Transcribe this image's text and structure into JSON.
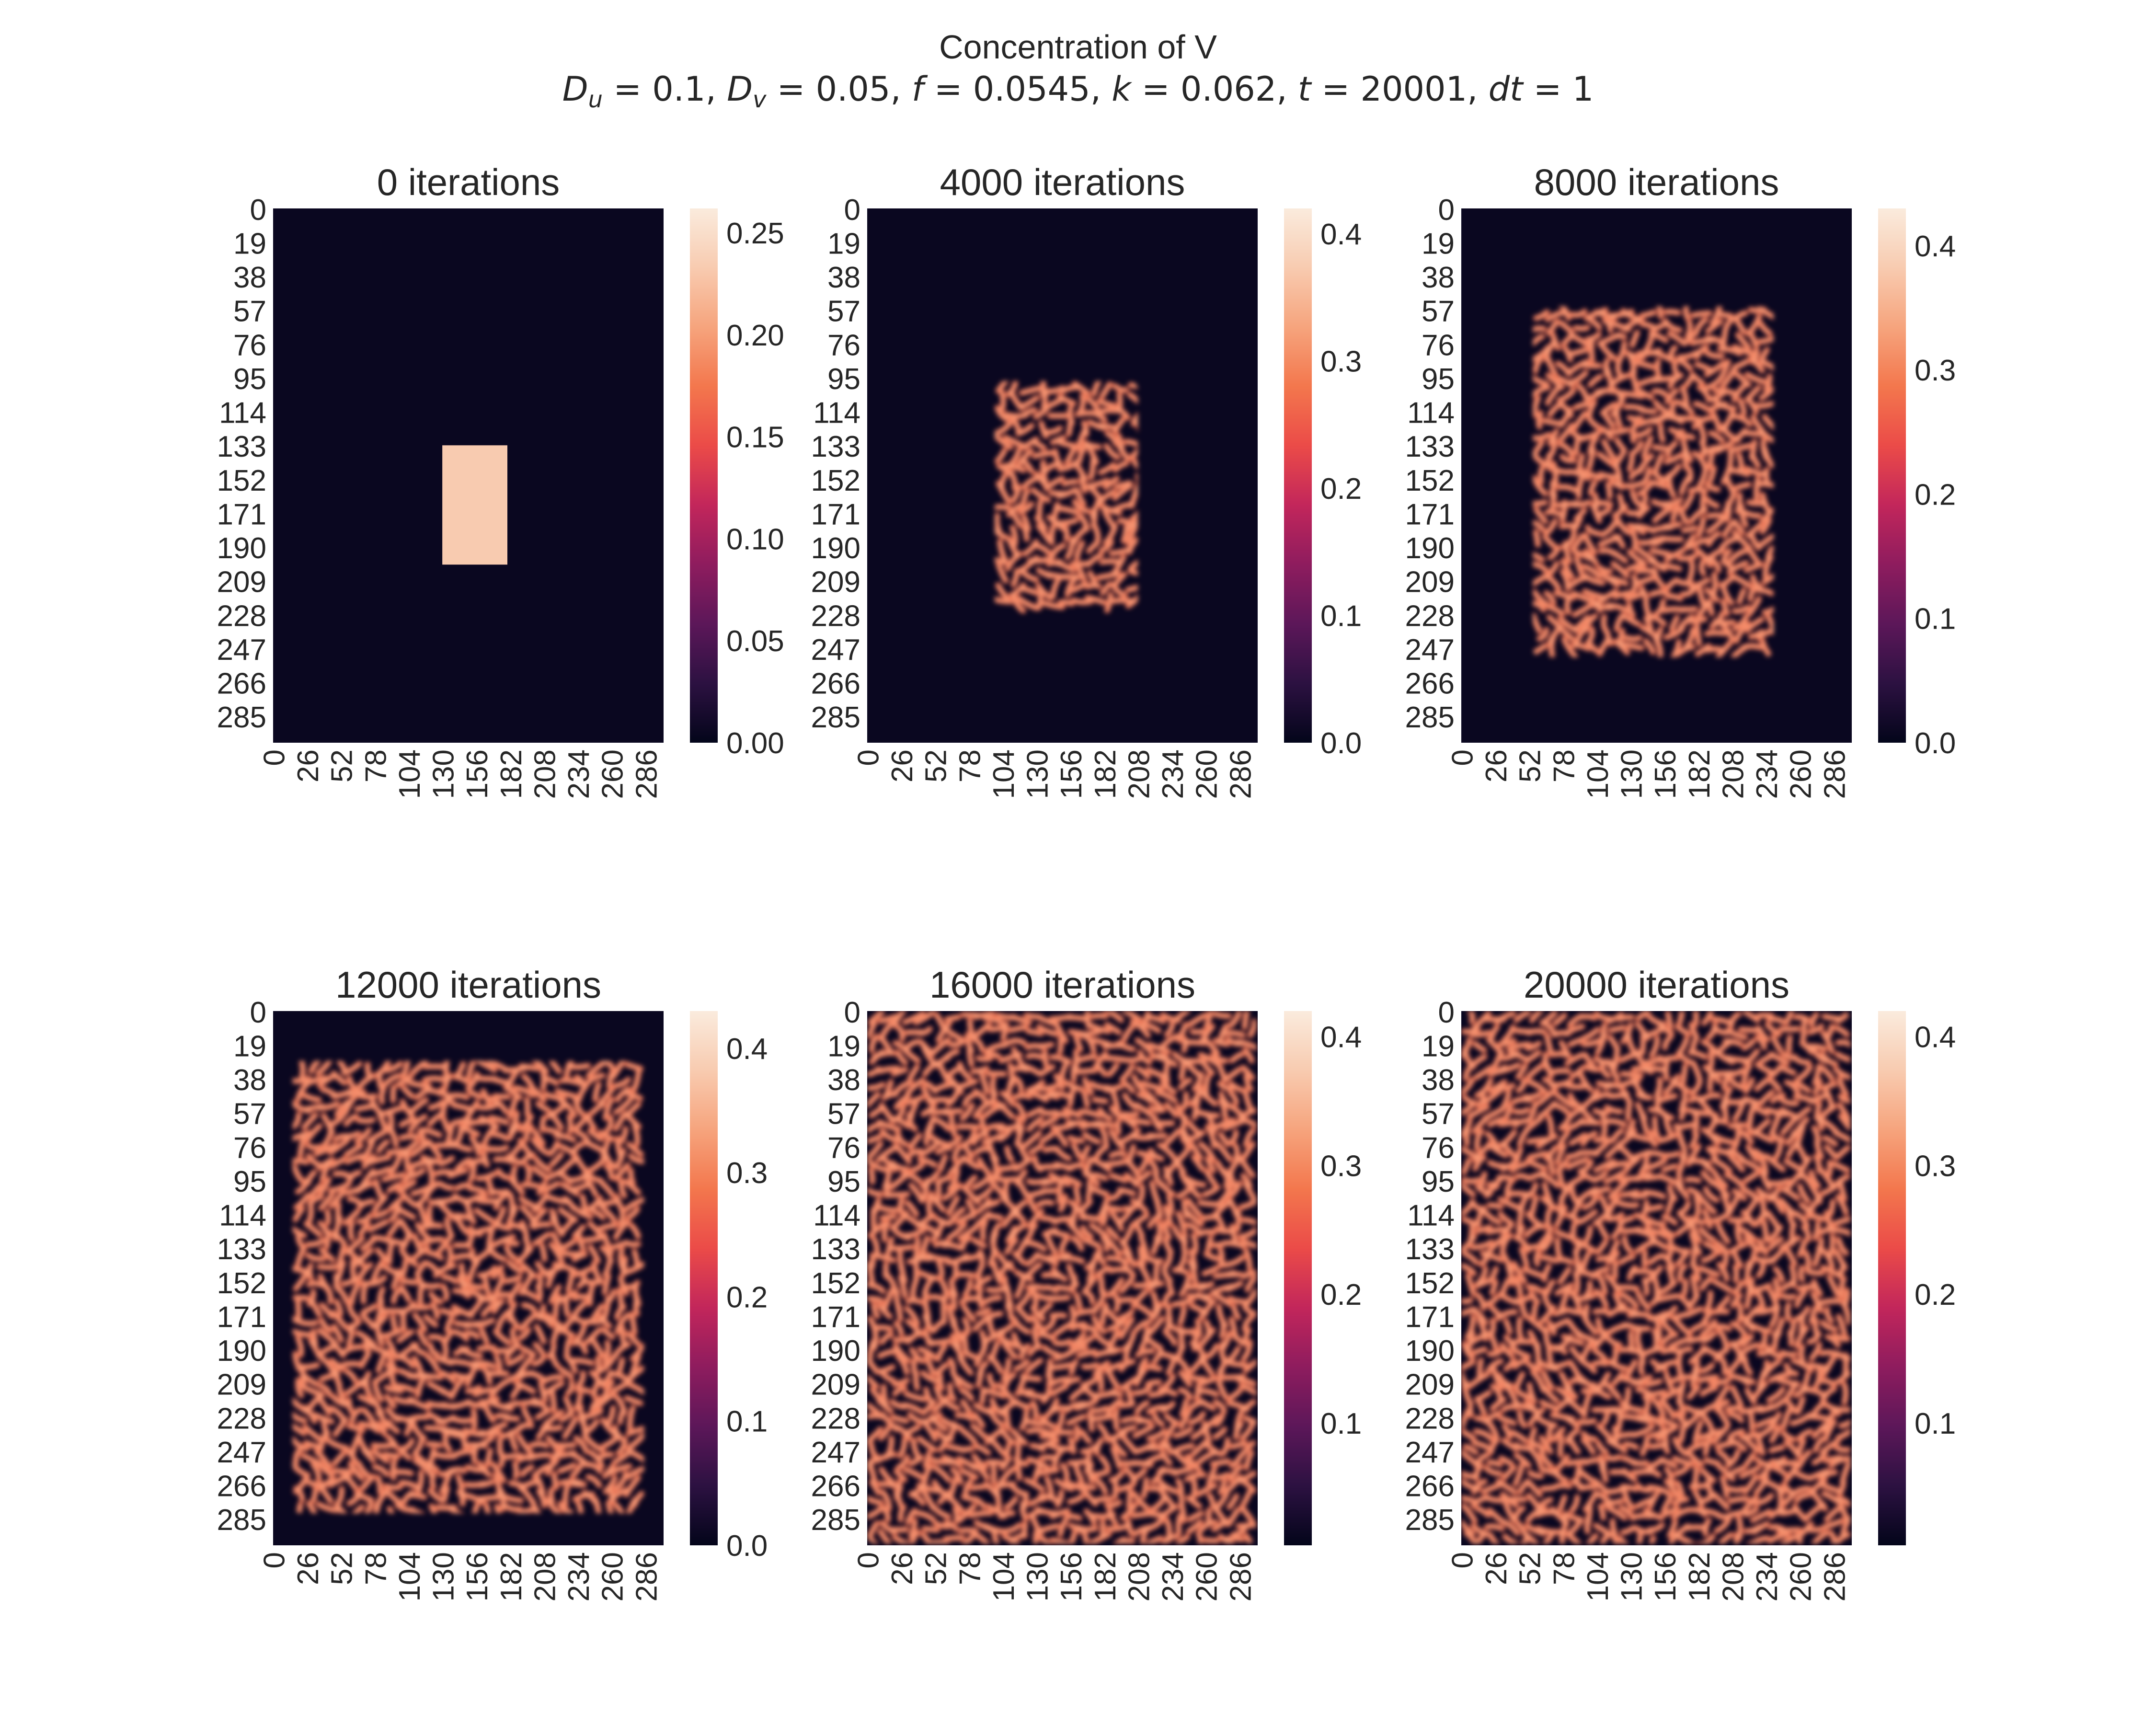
{
  "figure": {
    "title": "Concentration of V",
    "params": {
      "Du": "0.1",
      "Dv": "0.05",
      "f": "0.0545",
      "k": "0.062",
      "t": "20001",
      "dt": "1"
    }
  },
  "colors": {
    "background": "#0a0720",
    "cmap": [
      "#03051a",
      "#2c1141",
      "#5c1759",
      "#8e1c5e",
      "#c2265b",
      "#eb4b48",
      "#f3774d",
      "#f6a47d",
      "#f8cbb0",
      "#faebdd"
    ]
  },
  "chart_data": [
    {
      "type": "heatmap",
      "title": "0 iterations",
      "grid_size": 300,
      "pattern": "initial-square",
      "region": {
        "x": [
          130,
          180
        ],
        "y": [
          133,
          200
        ]
      },
      "x_ticks": [
        "0",
        "26",
        "52",
        "78",
        "104",
        "130",
        "156",
        "182",
        "208",
        "234",
        "260",
        "286"
      ],
      "y_ticks": [
        "0",
        "19",
        "38",
        "57",
        "76",
        "95",
        "114",
        "133",
        "152",
        "171",
        "190",
        "209",
        "228",
        "247",
        "266",
        "285"
      ],
      "colorbar": {
        "min": 0.0,
        "max": 0.262,
        "ticks": [
          "0.00",
          "0.05",
          "0.10",
          "0.15",
          "0.20",
          "0.25"
        ],
        "tick_values": [
          0.0,
          0.05,
          0.1,
          0.15,
          0.2,
          0.25
        ]
      }
    },
    {
      "type": "heatmap",
      "title": "4000 iterations",
      "grid_size": 300,
      "pattern": "labyrinth",
      "region": {
        "x": [
          98,
          208
        ],
        "y": [
          97,
          228
        ]
      },
      "x_ticks": [
        "0",
        "26",
        "52",
        "78",
        "104",
        "130",
        "156",
        "182",
        "208",
        "234",
        "260",
        "286"
      ],
      "y_ticks": [
        "0",
        "19",
        "38",
        "57",
        "76",
        "95",
        "114",
        "133",
        "152",
        "171",
        "190",
        "209",
        "228",
        "247",
        "266",
        "285"
      ],
      "colorbar": {
        "min": 0.0,
        "max": 0.42,
        "ticks": [
          "0.0",
          "0.1",
          "0.2",
          "0.3",
          "0.4"
        ],
        "tick_values": [
          0.0,
          0.1,
          0.2,
          0.3,
          0.4
        ]
      }
    },
    {
      "type": "heatmap",
      "title": "8000 iterations",
      "grid_size": 300,
      "pattern": "labyrinth",
      "region": {
        "x": [
          55,
          240
        ],
        "y": [
          55,
          252
        ]
      },
      "x_ticks": [
        "0",
        "26",
        "52",
        "78",
        "104",
        "130",
        "156",
        "182",
        "208",
        "234",
        "260",
        "286"
      ],
      "y_ticks": [
        "0",
        "19",
        "38",
        "57",
        "76",
        "95",
        "114",
        "133",
        "152",
        "171",
        "190",
        "209",
        "228",
        "247",
        "266",
        "285"
      ],
      "colorbar": {
        "min": 0.0,
        "max": 0.43,
        "ticks": [
          "0.0",
          "0.1",
          "0.2",
          "0.3",
          "0.4"
        ],
        "tick_values": [
          0.0,
          0.1,
          0.2,
          0.3,
          0.4
        ]
      }
    },
    {
      "type": "heatmap",
      "title": "12000 iterations",
      "grid_size": 300,
      "pattern": "labyrinth",
      "region": {
        "x": [
          15,
          285
        ],
        "y": [
          28,
          282
        ]
      },
      "x_ticks": [
        "0",
        "26",
        "52",
        "78",
        "104",
        "130",
        "156",
        "182",
        "208",
        "234",
        "260",
        "286"
      ],
      "y_ticks": [
        "0",
        "19",
        "38",
        "57",
        "76",
        "95",
        "114",
        "133",
        "152",
        "171",
        "190",
        "209",
        "228",
        "247",
        "266",
        "285"
      ],
      "colorbar": {
        "min": 0.0,
        "max": 0.43,
        "ticks": [
          "0.0",
          "0.1",
          "0.2",
          "0.3",
          "0.4"
        ],
        "tick_values": [
          0.0,
          0.1,
          0.2,
          0.3,
          0.4
        ]
      }
    },
    {
      "type": "heatmap",
      "title": "16000 iterations",
      "grid_size": 300,
      "pattern": "labyrinth",
      "region": {
        "x": [
          0,
          299
        ],
        "y": [
          0,
          299
        ]
      },
      "x_ticks": [
        "0",
        "26",
        "52",
        "78",
        "104",
        "130",
        "156",
        "182",
        "208",
        "234",
        "260",
        "286"
      ],
      "y_ticks": [
        "0",
        "19",
        "38",
        "57",
        "76",
        "95",
        "114",
        "133",
        "152",
        "171",
        "190",
        "209",
        "228",
        "247",
        "266",
        "285"
      ],
      "colorbar": {
        "min": 0.005,
        "max": 0.42,
        "ticks": [
          "0.1",
          "0.2",
          "0.3",
          "0.4"
        ],
        "tick_values": [
          0.1,
          0.2,
          0.3,
          0.4
        ]
      }
    },
    {
      "type": "heatmap",
      "title": "20000 iterations",
      "grid_size": 300,
      "pattern": "labyrinth",
      "region": {
        "x": [
          0,
          299
        ],
        "y": [
          0,
          299
        ]
      },
      "x_ticks": [
        "0",
        "26",
        "52",
        "78",
        "104",
        "130",
        "156",
        "182",
        "208",
        "234",
        "260",
        "286"
      ],
      "y_ticks": [
        "0",
        "19",
        "38",
        "57",
        "76",
        "95",
        "114",
        "133",
        "152",
        "171",
        "190",
        "209",
        "228",
        "247",
        "266",
        "285"
      ],
      "colorbar": {
        "min": 0.005,
        "max": 0.42,
        "ticks": [
          "0.1",
          "0.2",
          "0.3",
          "0.4"
        ],
        "tick_values": [
          0.1,
          0.2,
          0.3,
          0.4
        ]
      }
    }
  ]
}
